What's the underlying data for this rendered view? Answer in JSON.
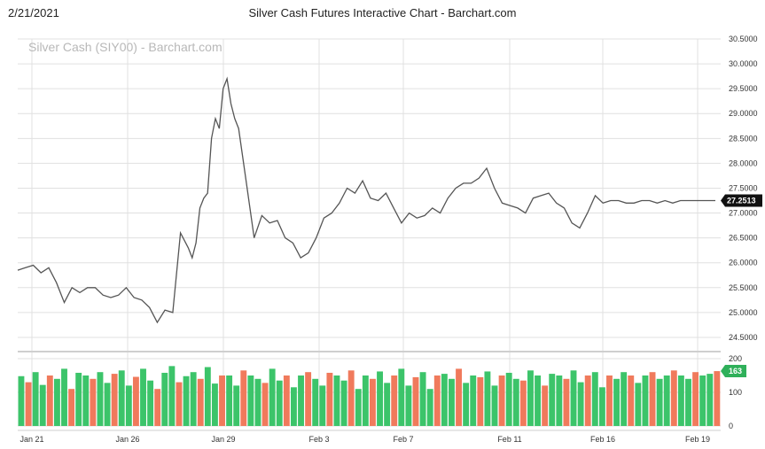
{
  "header": {
    "date": "2/21/2021",
    "title": "Silver Cash Futures Interactive Chart - Barchart.com"
  },
  "chart_data": {
    "type": "line",
    "watermark": "Silver Cash (SIY00) - Barchart.com",
    "price_axis": {
      "ylim": [
        24.25,
        30.5
      ],
      "ticks": [
        "30.5000",
        "30.0000",
        "29.5000",
        "29.0000",
        "28.5000",
        "28.0000",
        "27.5000",
        "27.0000",
        "26.5000",
        "26.0000",
        "25.5000",
        "25.0000",
        "24.5000"
      ]
    },
    "volume_axis": {
      "ylim": [
        0,
        200
      ],
      "ticks": [
        "200",
        "100",
        "0"
      ]
    },
    "x_tick_labels": [
      "Jan 21",
      "Jan 26",
      "Jan 29",
      "Feb 3",
      "Feb 7",
      "Feb 11",
      "Feb 16",
      "Feb 19"
    ],
    "last_price": "27.2513",
    "last_volume": "163",
    "price_series": {
      "name": "",
      "x": [
        0,
        4,
        8,
        12,
        16,
        20,
        24,
        28,
        32,
        36,
        40,
        44,
        48,
        52,
        56,
        60,
        64,
        68,
        72,
        76,
        80,
        84,
        88,
        90,
        92,
        94,
        96,
        98,
        100,
        102,
        104,
        106,
        108,
        110,
        112,
        114,
        118,
        122,
        126,
        130,
        134,
        138,
        142,
        146,
        150,
        154,
        158,
        162,
        166,
        170,
        174,
        178,
        182,
        186,
        190,
        194,
        198,
        202,
        206,
        210,
        214,
        218,
        222,
        226,
        230,
        234,
        238,
        242,
        246,
        250,
        254,
        258,
        262,
        266,
        270,
        274,
        278,
        282,
        286,
        290,
        294,
        298,
        302,
        306,
        310,
        314,
        318,
        322,
        326,
        330,
        334,
        338,
        342,
        346,
        350,
        354,
        358,
        360
      ],
      "values": [
        25.85,
        25.9,
        25.95,
        25.8,
        25.9,
        25.6,
        25.2,
        25.5,
        25.4,
        25.5,
        25.5,
        25.35,
        25.3,
        25.35,
        25.5,
        25.3,
        25.25,
        25.1,
        24.8,
        25.05,
        25.0,
        26.6,
        26.3,
        26.1,
        26.4,
        27.1,
        27.3,
        27.4,
        28.5,
        28.9,
        28.7,
        29.5,
        29.7,
        29.2,
        28.9,
        28.7,
        27.6,
        26.5,
        26.95,
        26.8,
        26.85,
        26.5,
        26.4,
        26.1,
        26.2,
        26.5,
        26.9,
        27.0,
        27.2,
        27.5,
        27.4,
        27.65,
        27.3,
        27.25,
        27.4,
        27.1,
        26.8,
        27.0,
        26.9,
        26.95,
        27.1,
        27.0,
        27.3,
        27.5,
        27.6,
        27.6,
        27.7,
        27.9,
        27.5,
        27.2,
        27.15,
        27.1,
        27.0,
        27.3,
        27.35,
        27.4,
        27.2,
        27.1,
        26.8,
        26.7,
        27.0,
        27.35,
        27.2,
        27.25,
        27.25,
        27.2,
        27.2,
        27.25,
        27.25,
        27.2,
        27.25,
        27.2,
        27.25,
        27.25,
        27.25,
        27.25,
        27.25,
        27.25
      ]
    },
    "volume_series": {
      "name": "",
      "values": [
        148,
        130,
        160,
        122,
        150,
        140,
        170,
        110,
        158,
        150,
        140,
        160,
        128,
        155,
        165,
        120,
        146,
        170,
        135,
        110,
        158,
        178,
        130,
        148,
        160,
        140,
        175,
        126,
        150,
        150,
        120,
        165,
        150,
        140,
        128,
        170,
        135,
        150,
        115,
        150,
        160,
        140,
        120,
        158,
        150,
        135,
        165,
        110,
        150,
        140,
        162,
        128,
        150,
        170,
        120,
        145,
        160,
        110,
        150,
        155,
        140,
        170,
        128,
        150,
        145,
        162,
        120,
        150,
        158,
        140,
        135,
        165,
        150,
        120,
        155,
        150,
        140,
        165,
        130,
        150,
        160,
        115,
        150,
        140,
        160,
        150,
        128,
        150,
        160,
        140,
        150,
        165,
        150,
        140,
        160,
        150,
        155,
        163
      ]
    },
    "colors": {
      "price_line": "#555555",
      "volume_up": "#3cc46a",
      "volume_down": "#f07a5c",
      "last_price_badge": "#111111",
      "last_volume_badge": "#2fb05a",
      "grid": "#e0e0e0"
    },
    "grid": true
  }
}
